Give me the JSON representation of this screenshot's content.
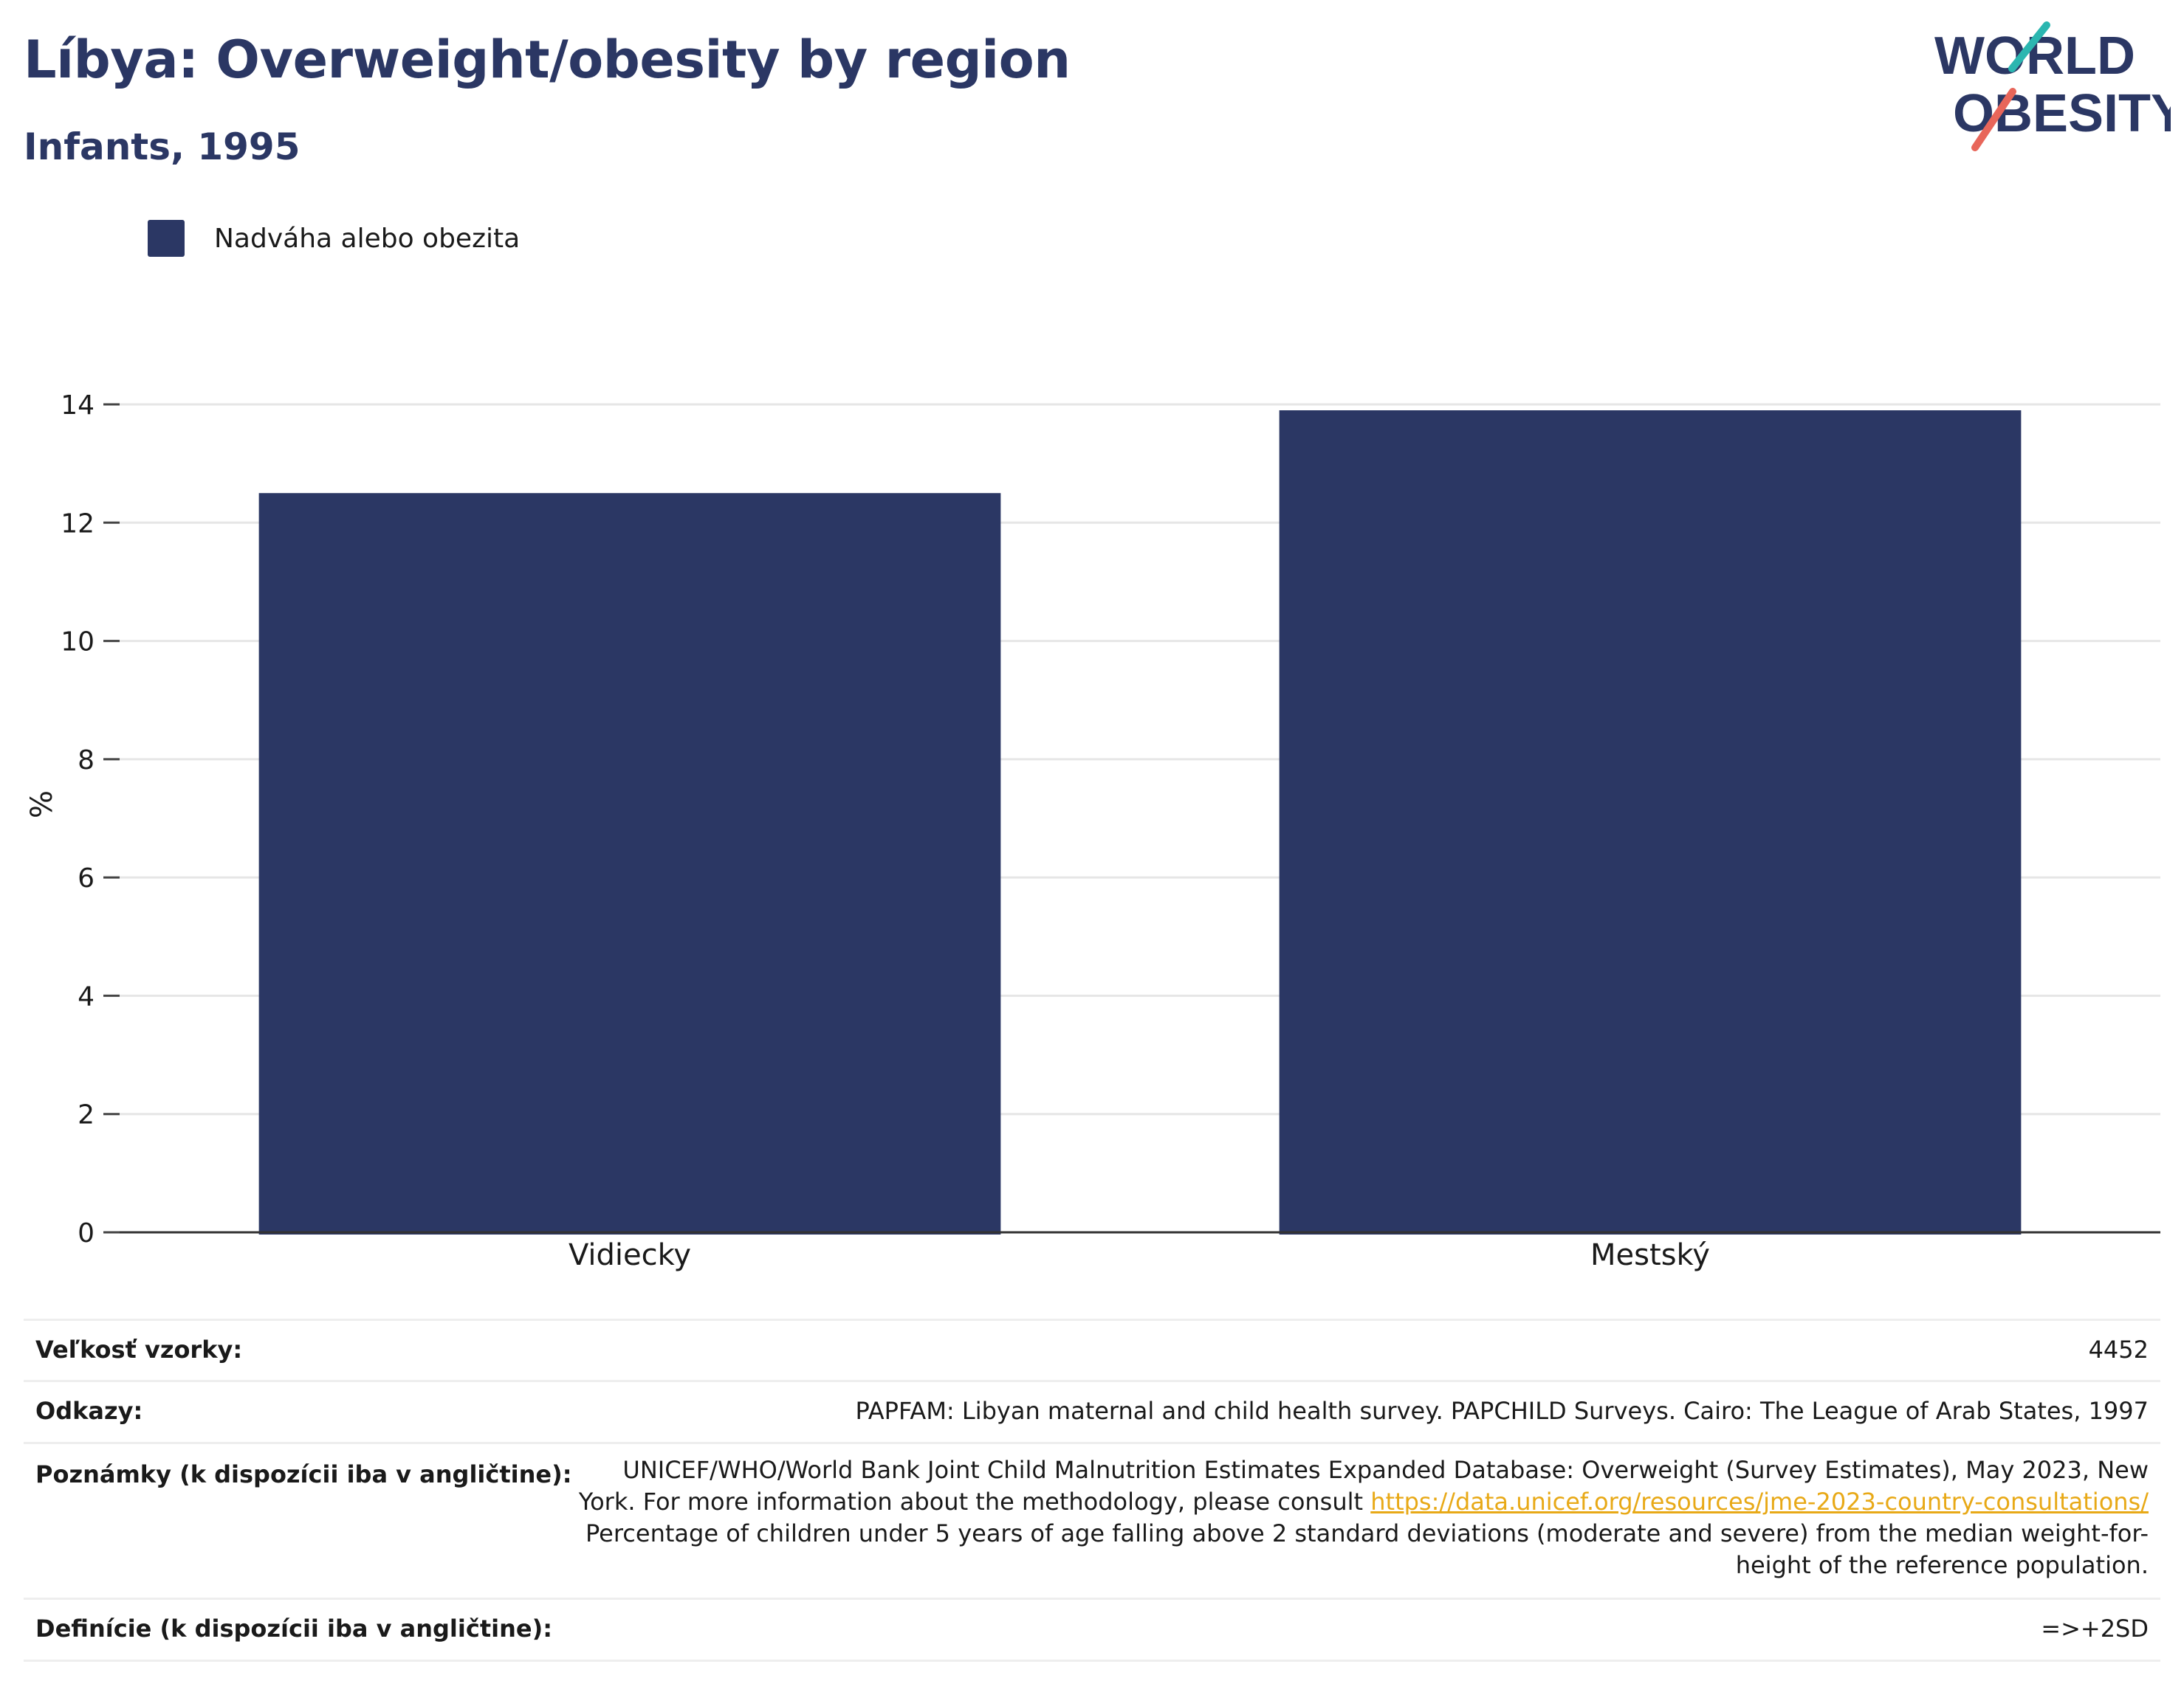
{
  "header": {
    "title": "Líbya: Overweight/obesity by region",
    "subtitle": "Infants, 1995",
    "logo_line1": "WORLD",
    "logo_line2": "OBESITY"
  },
  "legend": {
    "label": "Nadváha alebo obezita",
    "color": "#2b3764"
  },
  "chart_data": {
    "type": "bar",
    "title": "Líbya: Overweight/obesity by region",
    "subtitle": "Infants, 1995",
    "categories": [
      "Vidiecky",
      "Mestský"
    ],
    "series": [
      {
        "name": "Nadváha alebo obezita",
        "values": [
          12.5,
          13.9
        ],
        "color": "#2b3764"
      }
    ],
    "xlabel": "",
    "ylabel": "%",
    "ylim": [
      0,
      14
    ],
    "yticks": [
      0,
      2,
      4,
      6,
      8,
      10,
      12,
      14
    ],
    "grid": true,
    "legend_position": "top-left"
  },
  "meta": {
    "sample_size_label": "Veľkosť vzorky:",
    "sample_size_value": "4452",
    "references_label": "Odkazy:",
    "references_value": "PAPFAM: Libyan maternal and child health survey. PAPCHILD Surveys. Cairo: The League of Arab States, 1997",
    "notes_label": "Poznámky (k dispozícii iba v angličtine):",
    "notes_line1": "UNICEF/WHO/World Bank Joint Child Malnutrition Estimates Expanded Database: Overweight (Survey Estimates), May 2023, New",
    "notes_line2_prefix": "York. For more information about the methodology, please consult",
    "notes_link": "https://data.unicef.org/resources/jme-2023-country-consultations/",
    "notes_line3": "Percentage of children under 5 years of age falling above 2 standard deviations (moderate and severe) from the median weight-for-",
    "notes_line4": "height of the reference population.",
    "definitions_label": "Definície (k dispozícii iba v angličtine):",
    "definitions_value": "=>+2SD"
  }
}
